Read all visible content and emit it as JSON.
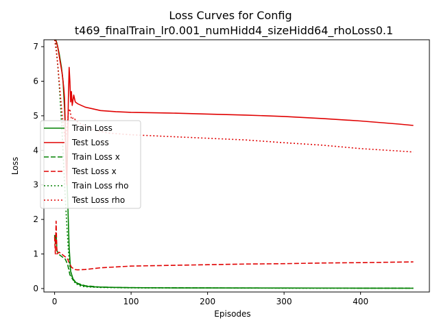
{
  "chart_data": {
    "type": "line",
    "title_line1": "Loss Curves for Config",
    "title_line2": "t469_finalTrain_lr0.001_numHidd4_sizeHidd64_rhoLoss0.1",
    "xlabel": "Episodes",
    "ylabel": "Loss",
    "xlim": [
      -14,
      490
    ],
    "ylim": [
      -0.1,
      7.2
    ],
    "xticks": [
      0,
      100,
      200,
      300,
      400
    ],
    "yticks": [
      0,
      1,
      2,
      3,
      4,
      5,
      6,
      7
    ],
    "grid": false,
    "legend_position": "center-left",
    "series": [
      {
        "name": "Train Loss",
        "color": "#008000",
        "dash": "solid",
        "points": [
          [
            0,
            7.3
          ],
          [
            3,
            7.1
          ],
          [
            6,
            6.8
          ],
          [
            9,
            6.4
          ],
          [
            11,
            6.0
          ],
          [
            13,
            5.2
          ],
          [
            15,
            4.0
          ],
          [
            17,
            2.6
          ],
          [
            19,
            1.2
          ],
          [
            21,
            0.5
          ],
          [
            24,
            0.28
          ],
          [
            28,
            0.17
          ],
          [
            33,
            0.11
          ],
          [
            40,
            0.07
          ],
          [
            50,
            0.05
          ],
          [
            70,
            0.035
          ],
          [
            100,
            0.025
          ],
          [
            150,
            0.02
          ],
          [
            200,
            0.018
          ],
          [
            300,
            0.015
          ],
          [
            400,
            0.012
          ],
          [
            469,
            0.01
          ]
        ]
      },
      {
        "name": "Test Loss",
        "color": "#e00000",
        "dash": "solid",
        "points": [
          [
            0,
            7.3
          ],
          [
            4,
            7.0
          ],
          [
            7,
            6.6
          ],
          [
            10,
            6.2
          ],
          [
            12,
            5.8
          ],
          [
            13,
            5.5
          ],
          [
            14,
            4.7
          ],
          [
            15,
            3.6
          ],
          [
            16,
            3.0
          ],
          [
            17,
            4.2
          ],
          [
            18,
            5.5
          ],
          [
            19,
            6.4
          ],
          [
            20,
            6.0
          ],
          [
            21,
            5.4
          ],
          [
            22,
            5.7
          ],
          [
            23,
            5.3
          ],
          [
            25,
            5.6
          ],
          [
            27,
            5.4
          ],
          [
            30,
            5.35
          ],
          [
            35,
            5.3
          ],
          [
            40,
            5.25
          ],
          [
            50,
            5.2
          ],
          [
            60,
            5.15
          ],
          [
            80,
            5.12
          ],
          [
            100,
            5.1
          ],
          [
            150,
            5.08
          ],
          [
            200,
            5.05
          ],
          [
            250,
            5.02
          ],
          [
            300,
            4.98
          ],
          [
            350,
            4.92
          ],
          [
            400,
            4.85
          ],
          [
            450,
            4.76
          ],
          [
            469,
            4.72
          ]
        ]
      },
      {
        "name": "Train Loss x",
        "color": "#008000",
        "dash": "dashed",
        "points": [
          [
            0,
            1.55
          ],
          [
            1,
            1.3
          ],
          [
            2,
            1.6
          ],
          [
            3,
            1.1
          ],
          [
            5,
            1.0
          ],
          [
            8,
            0.95
          ],
          [
            11,
            0.9
          ],
          [
            14,
            0.85
          ],
          [
            17,
            0.7
          ],
          [
            20,
            0.4
          ],
          [
            24,
            0.25
          ],
          [
            30,
            0.15
          ],
          [
            40,
            0.08
          ],
          [
            60,
            0.04
          ],
          [
            100,
            0.025
          ],
          [
            200,
            0.018
          ],
          [
            300,
            0.014
          ],
          [
            400,
            0.012
          ],
          [
            469,
            0.01
          ]
        ]
      },
      {
        "name": "Test Loss x",
        "color": "#e00000",
        "dash": "dashed",
        "points": [
          [
            0,
            1.5
          ],
          [
            1,
            1.0
          ],
          [
            2,
            1.95
          ],
          [
            3,
            1.0
          ],
          [
            6,
            1.05
          ],
          [
            9,
            1.0
          ],
          [
            12,
            0.95
          ],
          [
            15,
            0.9
          ],
          [
            17,
            0.85
          ],
          [
            19,
            0.75
          ],
          [
            22,
            0.62
          ],
          [
            26,
            0.55
          ],
          [
            30,
            0.54
          ],
          [
            40,
            0.55
          ],
          [
            60,
            0.6
          ],
          [
            100,
            0.65
          ],
          [
            150,
            0.67
          ],
          [
            200,
            0.69
          ],
          [
            250,
            0.71
          ],
          [
            300,
            0.72
          ],
          [
            350,
            0.74
          ],
          [
            400,
            0.75
          ],
          [
            469,
            0.77
          ]
        ]
      },
      {
        "name": "Train Loss rho",
        "color": "#008000",
        "dash": "dotted",
        "points": [
          [
            0,
            7.3
          ],
          [
            2,
            7.0
          ],
          [
            4,
            6.5
          ],
          [
            6,
            5.9
          ],
          [
            8,
            5.2
          ],
          [
            10,
            4.4
          ],
          [
            12,
            3.5
          ],
          [
            14,
            2.6
          ],
          [
            16,
            1.8
          ],
          [
            18,
            1.1
          ],
          [
            20,
            0.6
          ],
          [
            23,
            0.3
          ],
          [
            27,
            0.15
          ],
          [
            33,
            0.08
          ],
          [
            40,
            0.05
          ],
          [
            60,
            0.03
          ],
          [
            100,
            0.02
          ],
          [
            200,
            0.015
          ],
          [
            300,
            0.012
          ],
          [
            469,
            0.01
          ]
        ]
      },
      {
        "name": "Test Loss rho",
        "color": "#e00000",
        "dash": "dotted",
        "points": [
          [
            0,
            7.2
          ],
          [
            2,
            6.9
          ],
          [
            4,
            6.5
          ],
          [
            6,
            6.0
          ],
          [
            8,
            5.5
          ],
          [
            10,
            5.0
          ],
          [
            12,
            4.6
          ],
          [
            14,
            4.3
          ],
          [
            16,
            4.6
          ],
          [
            18,
            5.1
          ],
          [
            20,
            5.2
          ],
          [
            22,
            4.9
          ],
          [
            25,
            4.95
          ],
          [
            28,
            4.85
          ],
          [
            32,
            4.8
          ],
          [
            40,
            4.7
          ],
          [
            50,
            4.6
          ],
          [
            70,
            4.5
          ],
          [
            100,
            4.45
          ],
          [
            150,
            4.4
          ],
          [
            200,
            4.35
          ],
          [
            250,
            4.3
          ],
          [
            300,
            4.22
          ],
          [
            350,
            4.15
          ],
          [
            400,
            4.05
          ],
          [
            450,
            3.98
          ],
          [
            469,
            3.95
          ]
        ]
      }
    ]
  }
}
